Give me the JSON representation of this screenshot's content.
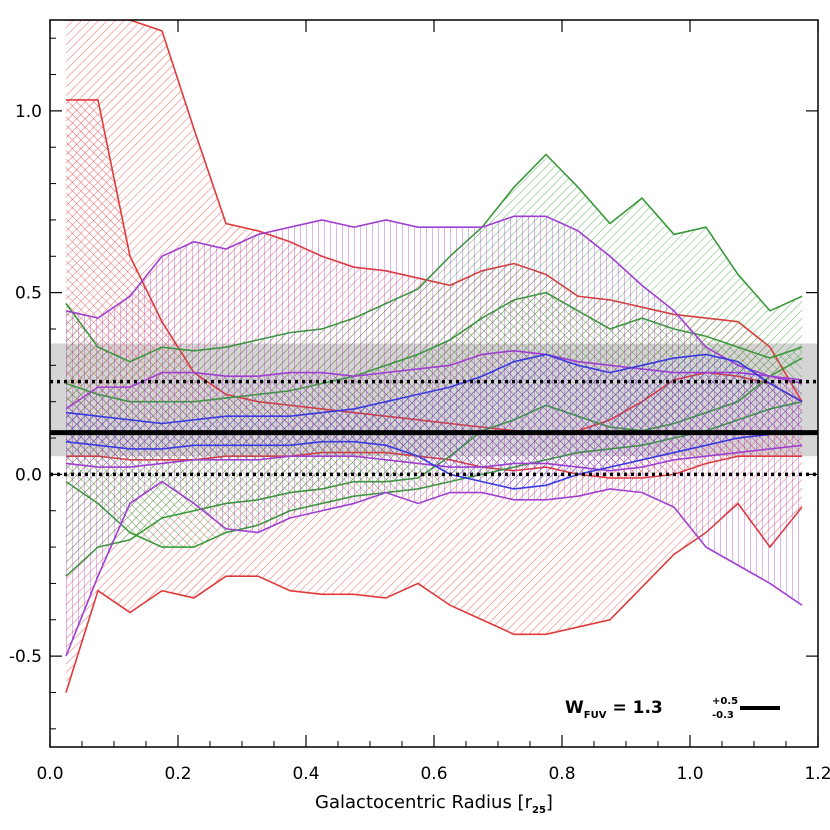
{
  "chart_data": {
    "type": "area",
    "title": "",
    "xlabel": "Galactocentric Radius [r",
    "xlabel_sub": "25",
    "xlabel_end": "]",
    "ylabel": "",
    "xlim": [
      0.0,
      1.2
    ],
    "ylim": [
      -0.75,
      1.25
    ],
    "x_ticks": [
      0.0,
      0.2,
      0.4,
      0.6,
      0.8,
      1.0,
      1.2
    ],
    "x_tick_labels": [
      "0.0",
      "0.2",
      "0.4",
      "0.6",
      "0.8",
      "1.0",
      "1.2"
    ],
    "y_ticks": [
      -0.5,
      0.0,
      0.5,
      1.0
    ],
    "y_tick_labels": [
      "-0.5",
      "0.0",
      "0.5",
      "1.0"
    ],
    "reference_lines": [
      {
        "name": "best-fit",
        "y": 0.115,
        "style": "solid",
        "color": "#000000"
      },
      {
        "name": "upper-bound",
        "y": 0.255,
        "style": "dotted",
        "color": "#000000"
      },
      {
        "name": "lower-bound",
        "y": 0.0,
        "style": "dotted",
        "color": "#000000"
      }
    ],
    "legend": {
      "label": "W",
      "label_sub": "FUV",
      "equals": "= 1.3",
      "sup": "+0.5",
      "sub": "-0.3",
      "position": "bottom-right"
    },
    "bands": [
      {
        "name": "red-galaxy-a",
        "color": "#e03a3a",
        "hatch": "diag-back",
        "x": [
          0.025,
          0.075,
          0.125,
          0.175,
          0.225,
          0.275,
          0.325,
          0.375,
          0.425,
          0.475,
          0.525,
          0.575,
          0.625,
          0.675,
          0.725,
          0.775,
          0.825,
          0.875,
          0.925,
          0.975,
          1.025,
          1.075,
          1.125,
          1.175
        ],
        "upper": [
          1.25,
          1.25,
          1.25,
          1.22,
          0.95,
          0.69,
          0.67,
          0.64,
          0.6,
          0.57,
          0.56,
          0.54,
          0.52,
          0.56,
          0.58,
          0.55,
          0.49,
          0.48,
          0.46,
          0.44,
          0.43,
          0.42,
          0.35,
          0.2
        ],
        "lower": [
          -0.6,
          -0.32,
          -0.38,
          -0.32,
          -0.34,
          -0.28,
          -0.28,
          -0.32,
          -0.33,
          -0.33,
          -0.34,
          -0.3,
          -0.36,
          -0.4,
          -0.44,
          -0.44,
          -0.42,
          -0.4,
          -0.31,
          -0.22,
          -0.16,
          -0.08,
          -0.2,
          -0.09
        ]
      },
      {
        "name": "red-galaxy-b",
        "color": "#e03a3a",
        "hatch": "diag-fwd",
        "x": [
          0.025,
          0.075,
          0.125,
          0.175,
          0.225,
          0.275,
          0.325,
          0.375,
          0.425,
          0.475,
          0.525,
          0.575,
          0.625,
          0.675,
          0.725,
          0.775,
          0.825,
          0.875,
          0.925,
          0.975,
          1.025,
          1.075,
          1.125,
          1.175
        ],
        "upper": [
          1.03,
          1.03,
          0.6,
          0.42,
          0.28,
          0.22,
          0.2,
          0.19,
          0.18,
          0.17,
          0.16,
          0.15,
          0.14,
          0.13,
          0.12,
          0.11,
          0.12,
          0.15,
          0.2,
          0.26,
          0.28,
          0.27,
          0.25,
          0.2
        ],
        "lower": [
          0.05,
          0.05,
          0.04,
          0.04,
          0.04,
          0.05,
          0.05,
          0.05,
          0.06,
          0.06,
          0.06,
          0.05,
          0.04,
          0.02,
          0.01,
          0.02,
          0.0,
          -0.01,
          -0.01,
          0.0,
          0.03,
          0.05,
          0.05,
          0.05
        ]
      },
      {
        "name": "green-galaxy-a",
        "color": "#3a9a3a",
        "hatch": "diag-back",
        "x": [
          0.025,
          0.075,
          0.125,
          0.175,
          0.225,
          0.275,
          0.325,
          0.375,
          0.425,
          0.475,
          0.525,
          0.575,
          0.625,
          0.675,
          0.725,
          0.775,
          0.825,
          0.875,
          0.925,
          0.975,
          1.025,
          1.075,
          1.125,
          1.175
        ],
        "upper": [
          0.47,
          0.35,
          0.31,
          0.35,
          0.34,
          0.35,
          0.37,
          0.39,
          0.4,
          0.43,
          0.47,
          0.51,
          0.6,
          0.68,
          0.79,
          0.88,
          0.79,
          0.69,
          0.76,
          0.66,
          0.68,
          0.55,
          0.45,
          0.49
        ],
        "lower": [
          -0.28,
          -0.2,
          -0.18,
          -0.12,
          -0.1,
          -0.08,
          -0.07,
          -0.05,
          -0.04,
          -0.02,
          -0.02,
          -0.01,
          0.05,
          0.12,
          0.15,
          0.19,
          0.16,
          0.13,
          0.12,
          0.14,
          0.17,
          0.2,
          0.27,
          0.32
        ]
      },
      {
        "name": "green-galaxy-b",
        "color": "#3a9a3a",
        "hatch": "diag-fwd",
        "x": [
          0.025,
          0.075,
          0.125,
          0.175,
          0.225,
          0.275,
          0.325,
          0.375,
          0.425,
          0.475,
          0.525,
          0.575,
          0.625,
          0.675,
          0.725,
          0.775,
          0.825,
          0.875,
          0.925,
          0.975,
          1.025,
          1.075,
          1.125,
          1.175
        ],
        "upper": [
          0.25,
          0.22,
          0.2,
          0.2,
          0.2,
          0.21,
          0.22,
          0.23,
          0.25,
          0.27,
          0.3,
          0.33,
          0.37,
          0.43,
          0.48,
          0.5,
          0.45,
          0.4,
          0.43,
          0.4,
          0.38,
          0.35,
          0.32,
          0.35
        ],
        "lower": [
          -0.02,
          -0.08,
          -0.16,
          -0.2,
          -0.2,
          -0.16,
          -0.14,
          -0.1,
          -0.08,
          -0.06,
          -0.05,
          -0.04,
          -0.02,
          0.0,
          0.02,
          0.04,
          0.06,
          0.07,
          0.08,
          0.1,
          0.12,
          0.15,
          0.18,
          0.2
        ]
      },
      {
        "name": "violet-galaxy-a",
        "color": "#a040d0",
        "hatch": "vertical",
        "x": [
          0.025,
          0.075,
          0.125,
          0.175,
          0.225,
          0.275,
          0.325,
          0.375,
          0.425,
          0.475,
          0.525,
          0.575,
          0.625,
          0.675,
          0.725,
          0.775,
          0.825,
          0.875,
          0.925,
          0.975,
          1.025,
          1.075,
          1.125,
          1.175
        ],
        "upper": [
          0.45,
          0.43,
          0.49,
          0.6,
          0.64,
          0.62,
          0.66,
          0.68,
          0.7,
          0.68,
          0.7,
          0.68,
          0.68,
          0.68,
          0.71,
          0.71,
          0.67,
          0.6,
          0.52,
          0.45,
          0.35,
          0.3,
          0.27,
          0.26
        ],
        "lower": [
          -0.5,
          -0.28,
          -0.08,
          -0.02,
          -0.08,
          -0.15,
          -0.16,
          -0.12,
          -0.1,
          -0.08,
          -0.05,
          -0.08,
          -0.05,
          -0.05,
          -0.07,
          -0.07,
          -0.06,
          -0.04,
          -0.05,
          -0.09,
          -0.2,
          -0.25,
          -0.3,
          -0.36
        ]
      },
      {
        "name": "violet-galaxy-b",
        "color": "#a040d0",
        "hatch": "diag-fwd",
        "x": [
          0.025,
          0.075,
          0.125,
          0.175,
          0.225,
          0.275,
          0.325,
          0.375,
          0.425,
          0.475,
          0.525,
          0.575,
          0.625,
          0.675,
          0.725,
          0.775,
          0.825,
          0.875,
          0.925,
          0.975,
          1.025,
          1.075,
          1.125,
          1.175
        ],
        "upper": [
          0.18,
          0.24,
          0.24,
          0.28,
          0.28,
          0.27,
          0.27,
          0.28,
          0.28,
          0.27,
          0.28,
          0.29,
          0.3,
          0.33,
          0.34,
          0.33,
          0.31,
          0.3,
          0.29,
          0.28,
          0.28,
          0.28,
          0.27,
          0.25
        ],
        "lower": [
          0.03,
          0.02,
          0.02,
          0.03,
          0.04,
          0.04,
          0.04,
          0.05,
          0.05,
          0.05,
          0.04,
          0.03,
          0.02,
          0.02,
          0.03,
          0.03,
          0.02,
          0.01,
          0.02,
          0.04,
          0.05,
          0.06,
          0.07,
          0.08
        ]
      },
      {
        "name": "blue-galaxy",
        "color": "#3a3ae0",
        "hatch": "diag-back",
        "x": [
          0.025,
          0.075,
          0.125,
          0.175,
          0.225,
          0.275,
          0.325,
          0.375,
          0.425,
          0.475,
          0.525,
          0.575,
          0.625,
          0.675,
          0.725,
          0.775,
          0.825,
          0.875,
          0.925,
          0.975,
          1.025,
          1.075,
          1.125,
          1.175
        ],
        "upper": [
          0.17,
          0.16,
          0.15,
          0.14,
          0.15,
          0.16,
          0.16,
          0.16,
          0.17,
          0.18,
          0.2,
          0.22,
          0.24,
          0.27,
          0.31,
          0.33,
          0.3,
          0.28,
          0.3,
          0.32,
          0.33,
          0.31,
          0.25,
          0.2
        ],
        "lower": [
          0.09,
          0.08,
          0.07,
          0.07,
          0.08,
          0.08,
          0.08,
          0.08,
          0.09,
          0.09,
          0.08,
          0.05,
          0.0,
          -0.02,
          -0.04,
          -0.03,
          0.0,
          0.02,
          0.04,
          0.06,
          0.08,
          0.1,
          0.11,
          0.12
        ]
      }
    ],
    "shaded_band": {
      "name": "grey-range",
      "color": "#888888",
      "y_low": 0.05,
      "y_high": 0.36
    }
  }
}
